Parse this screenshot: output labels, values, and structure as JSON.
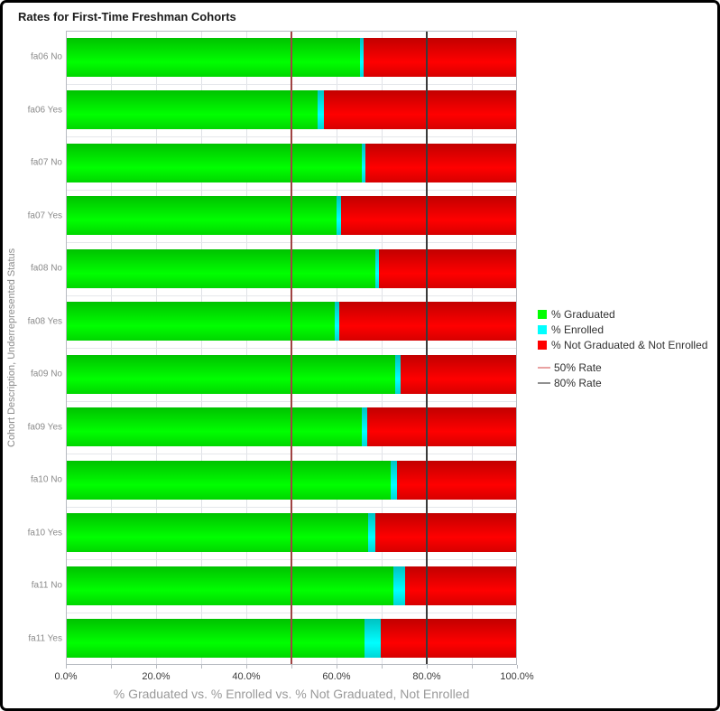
{
  "title": "Rates for First-Time Freshman Cohorts",
  "chart_data": {
    "type": "bar",
    "orientation": "horizontal",
    "stacked": true,
    "grid": true,
    "xlim": [
      0,
      100
    ],
    "x_ticks": [
      "0.0%",
      "20.0%",
      "40.0%",
      "60.0%",
      "80.0%",
      "100.0%"
    ],
    "xlabel": "% Graduated vs. % Enrolled vs. % Not Graduated, Not Enrolled",
    "ylabel": "Cohort Description, Underrepresented Status",
    "categories": [
      "fa06 No",
      "fa06 Yes",
      "fa07 No",
      "fa07 Yes",
      "fa08 No",
      "fa08 Yes",
      "fa09 No",
      "fa09 Yes",
      "fa10 No",
      "fa10 Yes",
      "fa11 No",
      "fa11 Yes"
    ],
    "series": [
      {
        "name": "% Graduated",
        "color": "#00ff00",
        "values": [
          65.1,
          55.8,
          65.5,
          59.9,
          68.5,
          59.6,
          73.0,
          65.5,
          71.9,
          66.9,
          72.5,
          66.2
        ]
      },
      {
        "name": "% Enrolled",
        "color": "#00ffff",
        "values": [
          0.9,
          1.3,
          0.8,
          1.0,
          0.8,
          1.0,
          1.2,
          1.2,
          1.5,
          1.7,
          2.6,
          3.6
        ]
      },
      {
        "name": "% Not Graduated & Not Enrolled",
        "color": "#ff0000",
        "values": [
          34.0,
          42.9,
          33.7,
          39.1,
          30.7,
          39.4,
          25.8,
          33.3,
          26.6,
          31.4,
          24.9,
          30.2
        ]
      }
    ],
    "reference_lines": [
      {
        "name": "50% Rate",
        "value": 50,
        "line_color": "#a04343",
        "legend_color": "#e9a2a2"
      },
      {
        "name": "80% Rate",
        "value": 80,
        "line_color": "#3a3a3a",
        "legend_color": "#919191"
      }
    ],
    "legend_position": "right"
  }
}
